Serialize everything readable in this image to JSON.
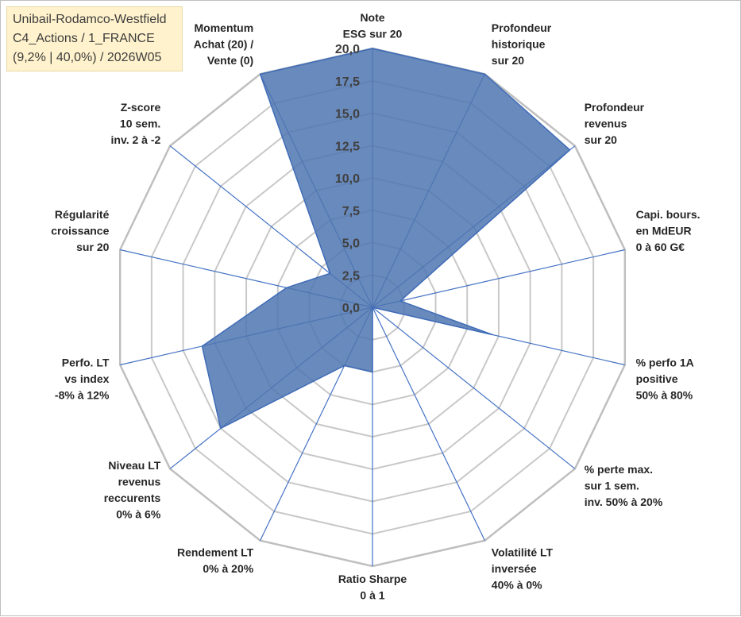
{
  "info": {
    "line1": "Unibail-Rodamco-Westfield",
    "line2": "C4_Actions / 1_FRANCE",
    "line3": "(9,2% | 40,0%) / 2026W05"
  },
  "chart_data": {
    "type": "radar",
    "title": "",
    "rmin": 0,
    "rmax": 20,
    "grid": true,
    "ticks": [
      "0,0",
      "2,5",
      "5,0",
      "7,5",
      "10,0",
      "12,5",
      "15,0",
      "17,5",
      "20,0"
    ],
    "axes": [
      {
        "label": [
          "Note",
          "ESG sur 20"
        ],
        "value": 20
      },
      {
        "label": [
          "Profondeur",
          "historique",
          "sur 20"
        ],
        "value": 20
      },
      {
        "label": [
          "Profondeur",
          "revenus",
          "sur 20"
        ],
        "value": 19.5
      },
      {
        "label": [
          "Capi. bours.",
          "en MdEUR",
          "0 à 60 G€"
        ],
        "value": 2.2
      },
      {
        "label": [
          "% perfo 1A",
          "positive",
          "50% à 80%"
        ],
        "value": 9.5
      },
      {
        "label": [
          "% perte max.",
          "sur 1 sem.",
          "inv. 50% à 20%"
        ],
        "value": 0
      },
      {
        "label": [
          "Volatilité LT",
          "inversée",
          "40% à 0%"
        ],
        "value": 0
      },
      {
        "label": [
          "Ratio Sharpe",
          "0 à 1"
        ],
        "value": 5
      },
      {
        "label": [
          "Rendement LT",
          "0% à 20%"
        ],
        "value": 5
      },
      {
        "label": [
          "Niveau LT",
          "revenus",
          "reccurents",
          "0% à 6%"
        ],
        "value": 15
      },
      {
        "label": [
          "Perfo. LT",
          "vs index",
          "-8% à 12%"
        ],
        "value": 13.5
      },
      {
        "label": [
          "Régularité",
          "croissance",
          "sur 20"
        ],
        "value": 6.8
      },
      {
        "label": [
          "Z-score",
          "10 sem.",
          "inv. 2 à -2"
        ],
        "value": 4.2
      },
      {
        "label": [
          "Momentum",
          "Achat (20) /",
          "Vente (0)"
        ],
        "value": 20
      }
    ],
    "series": [
      {
        "name": "Unibail-Rodamco-Westfield",
        "color": "#4f76b0"
      }
    ]
  }
}
